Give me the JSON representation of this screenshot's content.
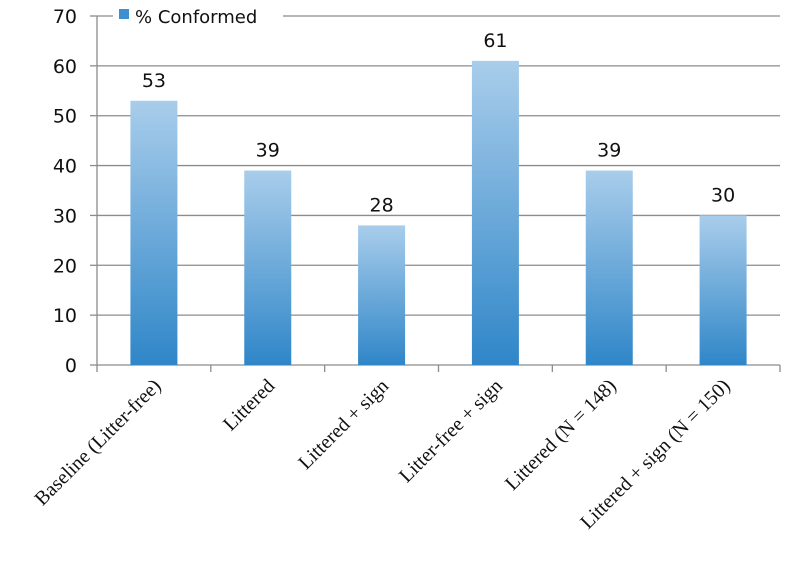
{
  "chart_data": {
    "type": "bar",
    "categories": [
      "Baseline (Litter-free)",
      "Littered",
      "Littered + sign",
      "Litter-free + sign",
      "Littered (N = 148)",
      "Littered + sign (N = 150)"
    ],
    "series": [
      {
        "name": "% Conformed",
        "values": [
          53,
          39,
          28,
          61,
          39,
          30
        ]
      }
    ],
    "ylim": [
      0,
      70
    ],
    "yticks": [
      0,
      10,
      20,
      30,
      40,
      50,
      60,
      70
    ],
    "grid": true,
    "legend": {
      "placement": "top-left"
    },
    "data_labels": true
  },
  "colors": {
    "bar_top": "#a9cdeb",
    "bar_bottom": "#2f86c8",
    "grid": "#8c8c8c",
    "axis": "#8c8c8c",
    "legend_swatch": "#3f8fd0"
  }
}
